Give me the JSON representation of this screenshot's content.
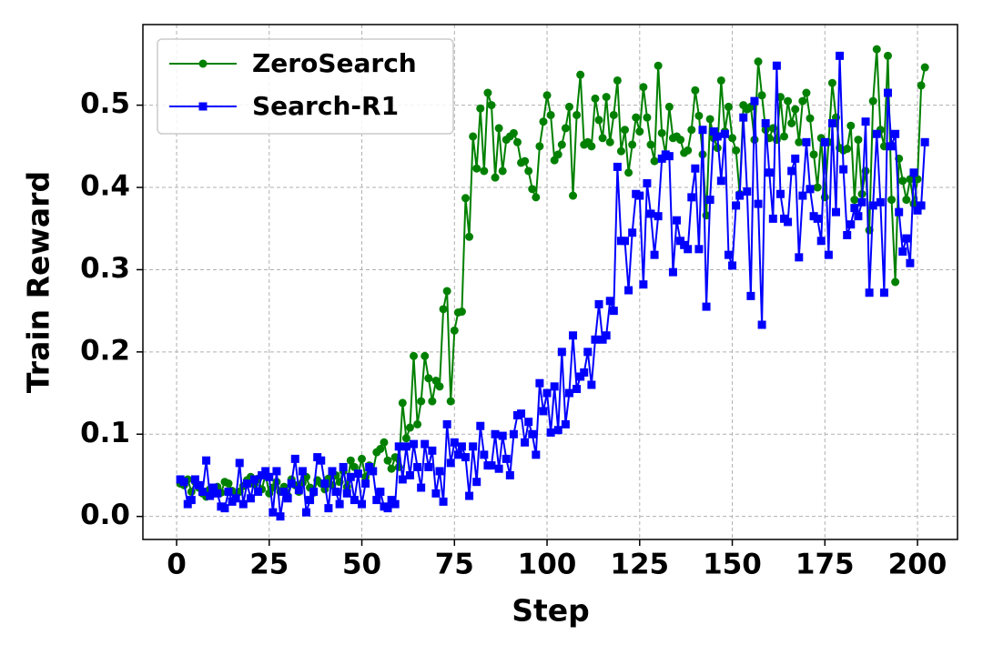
{
  "chart_data": {
    "type": "line",
    "xlabel": "Step",
    "ylabel": "Train Reward",
    "x": [
      1,
      2,
      3,
      4,
      5,
      6,
      7,
      8,
      9,
      10,
      11,
      12,
      13,
      14,
      15,
      16,
      17,
      18,
      19,
      20,
      21,
      22,
      23,
      24,
      25,
      26,
      27,
      28,
      29,
      30,
      31,
      32,
      33,
      34,
      35,
      36,
      37,
      38,
      39,
      40,
      41,
      42,
      43,
      44,
      45,
      46,
      47,
      48,
      49,
      50,
      51,
      52,
      53,
      54,
      55,
      56,
      57,
      58,
      59,
      60,
      61,
      62,
      63,
      64,
      65,
      66,
      67,
      68,
      69,
      70,
      71,
      72,
      73,
      74,
      75,
      76,
      77,
      78,
      79,
      80,
      81,
      82,
      83,
      84,
      85,
      86,
      87,
      88,
      89,
      90,
      91,
      92,
      93,
      94,
      95,
      96,
      97,
      98,
      99,
      100,
      101,
      102,
      103,
      104,
      105,
      106,
      107,
      108,
      109,
      110,
      111,
      112,
      113,
      114,
      115,
      116,
      117,
      118,
      119,
      120,
      121,
      122,
      123,
      124,
      125,
      126,
      127,
      128,
      129,
      130,
      131,
      132,
      133,
      134,
      135,
      136,
      137,
      138,
      139,
      140,
      141,
      142,
      143,
      144,
      145,
      146,
      147,
      148,
      149,
      150,
      151,
      152,
      153,
      154,
      155,
      156,
      157,
      158,
      159,
      160,
      161,
      162,
      163,
      164,
      165,
      166,
      167,
      168,
      169,
      170,
      171,
      172,
      173,
      174,
      175,
      176,
      177,
      178,
      179,
      180,
      181,
      182,
      183,
      184,
      185,
      186,
      187,
      188,
      189,
      190,
      191,
      192,
      193,
      194,
      195,
      196,
      197,
      198,
      199,
      200,
      201,
      202
    ],
    "series": [
      {
        "name": "ZeroSearch",
        "color": "#008000",
        "marker": "circle",
        "values": [
          0.04,
          0.038,
          0.045,
          0.03,
          0.042,
          0.035,
          0.028,
          0.024,
          0.033,
          0.03,
          0.036,
          0.029,
          0.042,
          0.04,
          0.031,
          0.025,
          0.03,
          0.037,
          0.044,
          0.048,
          0.039,
          0.046,
          0.033,
          0.051,
          0.028,
          0.035,
          0.042,
          0.03,
          0.036,
          0.025,
          0.045,
          0.038,
          0.03,
          0.041,
          0.048,
          0.035,
          0.029,
          0.044,
          0.04,
          0.033,
          0.046,
          0.038,
          0.05,
          0.042,
          0.055,
          0.036,
          0.068,
          0.06,
          0.052,
          0.07,
          0.048,
          0.062,
          0.055,
          0.078,
          0.082,
          0.09,
          0.068,
          0.058,
          0.072,
          0.06,
          0.138,
          0.095,
          0.108,
          0.195,
          0.112,
          0.14,
          0.195,
          0.168,
          0.14,
          0.165,
          0.158,
          0.252,
          0.274,
          0.14,
          0.226,
          0.248,
          0.249,
          0.387,
          0.34,
          0.462,
          0.423,
          0.496,
          0.42,
          0.515,
          0.5,
          0.412,
          0.472,
          0.42,
          0.458,
          0.462,
          0.466,
          0.455,
          0.43,
          0.432,
          0.42,
          0.398,
          0.388,
          0.45,
          0.48,
          0.512,
          0.488,
          0.433,
          0.44,
          0.452,
          0.472,
          0.498,
          0.39,
          0.488,
          0.537,
          0.452,
          0.455,
          0.45,
          0.508,
          0.482,
          0.46,
          0.51,
          0.455,
          0.488,
          0.53,
          0.444,
          0.47,
          0.418,
          0.452,
          0.485,
          0.468,
          0.522,
          0.485,
          0.452,
          0.432,
          0.548,
          0.466,
          0.44,
          0.498,
          0.46,
          0.462,
          0.458,
          0.442,
          0.445,
          0.47,
          0.518,
          0.487,
          0.44,
          0.366,
          0.483,
          0.46,
          0.448,
          0.53,
          0.468,
          0.498,
          0.46,
          0.445,
          0.392,
          0.5,
          0.495,
          0.498,
          0.458,
          0.553,
          0.512,
          0.47,
          0.46,
          0.472,
          0.458,
          0.51,
          0.462,
          0.505,
          0.478,
          0.495,
          0.455,
          0.505,
          0.515,
          0.484,
          0.44,
          0.4,
          0.46,
          0.388,
          0.455,
          0.527,
          0.485,
          0.448,
          0.445,
          0.447,
          0.475,
          0.385,
          0.458,
          0.392,
          0.42,
          0.348,
          0.505,
          0.568,
          0.47,
          0.45,
          0.56,
          0.385,
          0.285,
          0.435,
          0.408,
          0.385,
          0.41,
          0.38,
          0.41,
          0.524,
          0.546
        ]
      },
      {
        "name": "Search-R1",
        "color": "#0000ff",
        "marker": "square",
        "values": [
          0.045,
          0.042,
          0.015,
          0.02,
          0.045,
          0.038,
          0.03,
          0.068,
          0.025,
          0.035,
          0.028,
          0.012,
          0.01,
          0.03,
          0.018,
          0.022,
          0.065,
          0.015,
          0.04,
          0.022,
          0.045,
          0.03,
          0.05,
          0.055,
          0.048,
          0.005,
          0.055,
          0.0,
          0.03,
          0.022,
          0.04,
          0.07,
          0.032,
          0.055,
          0.005,
          0.02,
          0.03,
          0.072,
          0.068,
          0.04,
          0.01,
          0.055,
          0.03,
          0.015,
          0.06,
          0.028,
          0.048,
          0.02,
          0.052,
          0.015,
          0.04,
          0.06,
          0.055,
          0.02,
          0.03,
          0.012,
          0.01,
          0.02,
          0.015,
          0.085,
          0.045,
          0.085,
          0.05,
          0.088,
          0.06,
          0.035,
          0.088,
          0.06,
          0.08,
          0.028,
          0.055,
          0.018,
          0.112,
          0.065,
          0.09,
          0.075,
          0.085,
          0.072,
          0.025,
          0.085,
          0.042,
          0.11,
          0.075,
          0.062,
          0.062,
          0.1,
          0.058,
          0.098,
          0.07,
          0.05,
          0.1,
          0.123,
          0.125,
          0.09,
          0.115,
          0.1,
          0.075,
          0.162,
          0.128,
          0.15,
          0.102,
          0.158,
          0.105,
          0.2,
          0.112,
          0.15,
          0.22,
          0.155,
          0.17,
          0.175,
          0.2,
          0.16,
          0.215,
          0.258,
          0.215,
          0.22,
          0.262,
          0.25,
          0.425,
          0.335,
          0.335,
          0.275,
          0.345,
          0.392,
          0.39,
          0.282,
          0.405,
          0.368,
          0.318,
          0.365,
          0.435,
          0.44,
          0.438,
          0.297,
          0.36,
          0.335,
          0.33,
          0.325,
          0.388,
          0.423,
          0.325,
          0.47,
          0.255,
          0.385,
          0.468,
          0.462,
          0.408,
          0.465,
          0.318,
          0.305,
          0.378,
          0.39,
          0.485,
          0.395,
          0.268,
          0.505,
          0.38,
          0.233,
          0.478,
          0.418,
          0.362,
          0.548,
          0.392,
          0.362,
          0.358,
          0.42,
          0.435,
          0.315,
          0.39,
          0.455,
          0.398,
          0.365,
          0.362,
          0.335,
          0.455,
          0.318,
          0.478,
          0.37,
          0.56,
          0.422,
          0.342,
          0.355,
          0.375,
          0.365,
          0.382,
          0.48,
          0.272,
          0.378,
          0.465,
          0.382,
          0.272,
          0.515,
          0.45,
          0.465,
          0.37,
          0.322,
          0.338,
          0.308,
          0.418,
          0.372,
          0.378,
          0.455
        ]
      }
    ],
    "xlim": [
      -9.1,
      210.8
    ],
    "ylim": [
      -0.028,
      0.598
    ],
    "xticks": [
      0,
      25,
      50,
      75,
      100,
      125,
      150,
      175,
      200
    ],
    "yticks": [
      {
        "value": 0,
        "label": "0.0"
      },
      0.1,
      0.2,
      0.3,
      0.4,
      0.5
    ],
    "grid": true,
    "legend": "upper left"
  }
}
